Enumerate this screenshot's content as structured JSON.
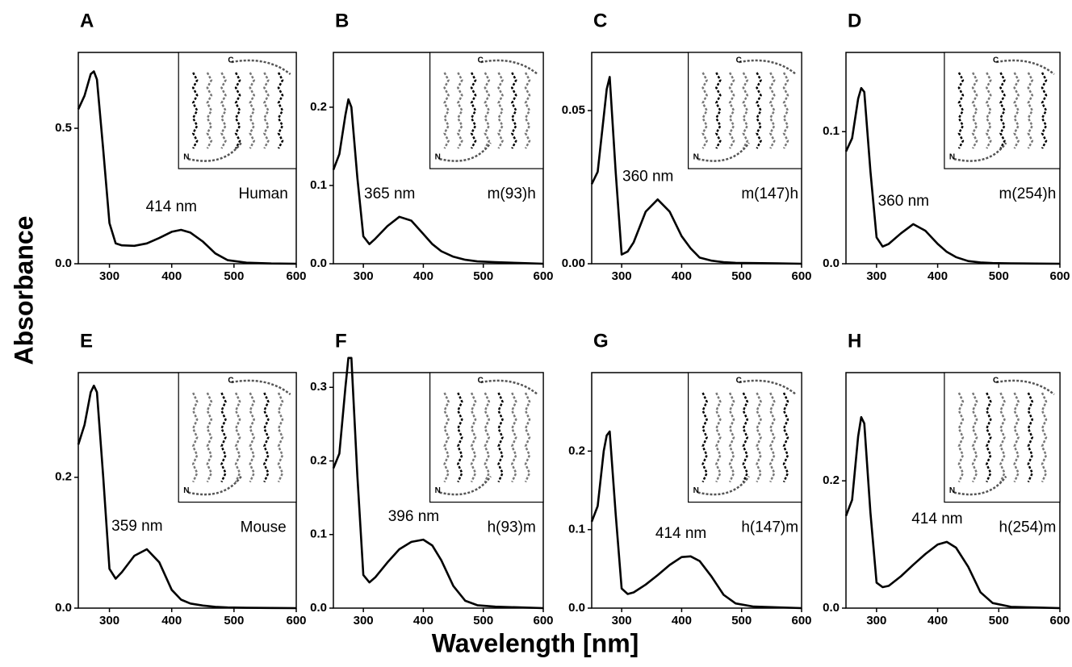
{
  "figure": {
    "ylabel": "Absorbance",
    "xlabel": "Wavelength [nm]"
  },
  "chart_data": [
    {
      "type": "line",
      "title": "A",
      "annotation": "414 nm",
      "label": "Human",
      "color": "#000000",
      "inset": {
        "top": "C",
        "bottom": "N"
      },
      "x": [
        250,
        260,
        270,
        275,
        280,
        290,
        300,
        310,
        320,
        340,
        360,
        380,
        400,
        415,
        430,
        450,
        470,
        490,
        520,
        560,
        600
      ],
      "values": [
        0.57,
        0.62,
        0.7,
        0.71,
        0.68,
        0.42,
        0.15,
        0.075,
        0.068,
        0.066,
        0.075,
        0.095,
        0.118,
        0.125,
        0.115,
        0.082,
        0.038,
        0.013,
        0.004,
        0.001,
        0
      ],
      "xlim": [
        250,
        600
      ],
      "xticks": [
        300,
        400,
        500,
        600
      ],
      "ylim": [
        0,
        0.78
      ],
      "yticks": [
        {
          "value": 0,
          "label": "0.0"
        },
        0.5
      ]
    },
    {
      "type": "line",
      "title": "B",
      "annotation": "365 nm",
      "label": "m(93)h",
      "color": "#000000",
      "inset": {
        "top": "C",
        "bottom": "N"
      },
      "x": [
        250,
        260,
        270,
        275,
        280,
        290,
        300,
        310,
        320,
        340,
        360,
        380,
        400,
        415,
        430,
        450,
        470,
        490,
        520,
        560,
        600
      ],
      "values": [
        0.12,
        0.14,
        0.19,
        0.21,
        0.2,
        0.11,
        0.035,
        0.025,
        0.032,
        0.048,
        0.06,
        0.055,
        0.038,
        0.025,
        0.016,
        0.009,
        0.005,
        0.003,
        0.002,
        0.001,
        0
      ],
      "xlim": [
        250,
        600
      ],
      "xticks": [
        300,
        400,
        500,
        600
      ],
      "ylim": [
        0,
        0.27
      ],
      "yticks": [
        {
          "value": 0,
          "label": "0.0"
        },
        0.1,
        0.2
      ]
    },
    {
      "type": "line",
      "title": "C",
      "annotation": "360 nm",
      "label": "m(147)h",
      "color": "#000000",
      "inset": {
        "top": "C",
        "bottom": "N"
      },
      "x": [
        250,
        260,
        270,
        275,
        280,
        290,
        300,
        310,
        320,
        340,
        360,
        380,
        400,
        415,
        430,
        450,
        470,
        490,
        520,
        560,
        600
      ],
      "values": [
        0.026,
        0.03,
        0.048,
        0.057,
        0.061,
        0.03,
        0.003,
        0.004,
        0.007,
        0.017,
        0.021,
        0.017,
        0.009,
        0.005,
        0.002,
        0.001,
        0.0005,
        0.0003,
        0.0002,
        0.0001,
        0
      ],
      "xlim": [
        250,
        600
      ],
      "xticks": [
        300,
        400,
        500,
        600
      ],
      "ylim": [
        0,
        0.069
      ],
      "yticks": [
        {
          "value": 0,
          "label": "0.00"
        },
        0.05
      ]
    },
    {
      "type": "line",
      "title": "D",
      "annotation": "360 nm",
      "label": "m(254)h",
      "color": "#000000",
      "inset": {
        "top": "C",
        "bottom": "N"
      },
      "x": [
        250,
        260,
        270,
        275,
        280,
        290,
        300,
        310,
        320,
        340,
        360,
        380,
        400,
        415,
        430,
        450,
        470,
        490,
        520,
        560,
        600
      ],
      "values": [
        0.085,
        0.095,
        0.125,
        0.133,
        0.13,
        0.07,
        0.02,
        0.013,
        0.015,
        0.023,
        0.03,
        0.025,
        0.015,
        0.009,
        0.005,
        0.002,
        0.001,
        0.0005,
        0.0003,
        0.0001,
        0
      ],
      "xlim": [
        250,
        600
      ],
      "xticks": [
        300,
        400,
        500,
        600
      ],
      "ylim": [
        0,
        0.16
      ],
      "yticks": [
        {
          "value": 0,
          "label": "0.0"
        },
        0.1
      ]
    },
    {
      "type": "line",
      "title": "E",
      "annotation": "359 nm",
      "label": "Mouse",
      "color": "#000000",
      "inset": {
        "top": "C",
        "bottom": "N"
      },
      "x": [
        250,
        260,
        270,
        275,
        280,
        290,
        300,
        310,
        320,
        340,
        360,
        380,
        400,
        415,
        430,
        450,
        470,
        490,
        520,
        560,
        600
      ],
      "values": [
        0.25,
        0.28,
        0.33,
        0.34,
        0.33,
        0.2,
        0.06,
        0.045,
        0.055,
        0.08,
        0.09,
        0.07,
        0.028,
        0.013,
        0.007,
        0.004,
        0.002,
        0.001,
        0.0005,
        0.0002,
        0
      ],
      "xlim": [
        250,
        600
      ],
      "xticks": [
        300,
        400,
        500,
        600
      ],
      "ylim": [
        0,
        0.36
      ],
      "yticks": [
        {
          "value": 0,
          "label": "0.0"
        },
        0.2
      ]
    },
    {
      "type": "line",
      "title": "F",
      "annotation": "396 nm",
      "label": "h(93)m",
      "color": "#000000",
      "inset": {
        "top": "C",
        "bottom": "N"
      },
      "x": [
        250,
        260,
        270,
        275,
        280,
        290,
        300,
        310,
        320,
        340,
        360,
        380,
        400,
        415,
        430,
        450,
        470,
        490,
        520,
        560,
        600
      ],
      "values": [
        0.19,
        0.21,
        0.3,
        0.34,
        0.34,
        0.18,
        0.045,
        0.035,
        0.042,
        0.062,
        0.08,
        0.09,
        0.093,
        0.085,
        0.065,
        0.03,
        0.01,
        0.004,
        0.002,
        0.001,
        0
      ],
      "xlim": [
        250,
        600
      ],
      "xticks": [
        300,
        400,
        500,
        600
      ],
      "ylim": [
        0,
        0.32
      ],
      "yticks": [
        {
          "value": 0,
          "label": "0.0"
        },
        0.1,
        0.2,
        0.3
      ]
    },
    {
      "type": "line",
      "title": "G",
      "annotation": "414 nm",
      "label": "h(147)m",
      "color": "#000000",
      "inset": {
        "top": "C",
        "bottom": "N"
      },
      "x": [
        250,
        260,
        270,
        275,
        280,
        290,
        300,
        310,
        320,
        340,
        360,
        380,
        400,
        415,
        430,
        450,
        470,
        490,
        520,
        560,
        600
      ],
      "values": [
        0.11,
        0.13,
        0.2,
        0.22,
        0.225,
        0.12,
        0.025,
        0.018,
        0.02,
        0.03,
        0.042,
        0.055,
        0.065,
        0.066,
        0.06,
        0.04,
        0.017,
        0.006,
        0.002,
        0.001,
        0
      ],
      "xlim": [
        250,
        600
      ],
      "xticks": [
        300,
        400,
        500,
        600
      ],
      "ylim": [
        0,
        0.3
      ],
      "yticks": [
        {
          "value": 0,
          "label": "0.0"
        },
        0.1,
        0.2
      ]
    },
    {
      "type": "line",
      "title": "H",
      "annotation": "414 nm",
      "label": "h(254)m",
      "color": "#000000",
      "inset": {
        "top": "C",
        "bottom": "N"
      },
      "x": [
        250,
        260,
        270,
        275,
        280,
        290,
        300,
        310,
        320,
        340,
        360,
        380,
        400,
        415,
        430,
        450,
        470,
        490,
        520,
        560,
        600
      ],
      "values": [
        0.145,
        0.17,
        0.27,
        0.3,
        0.29,
        0.15,
        0.04,
        0.033,
        0.035,
        0.05,
        0.068,
        0.085,
        0.1,
        0.104,
        0.095,
        0.065,
        0.025,
        0.008,
        0.002,
        0.001,
        0
      ],
      "xlim": [
        250,
        600
      ],
      "xticks": [
        300,
        400,
        500,
        600
      ],
      "ylim": [
        0,
        0.37
      ],
      "yticks": [
        {
          "value": 0,
          "label": "0.0"
        },
        0.2
      ]
    }
  ]
}
